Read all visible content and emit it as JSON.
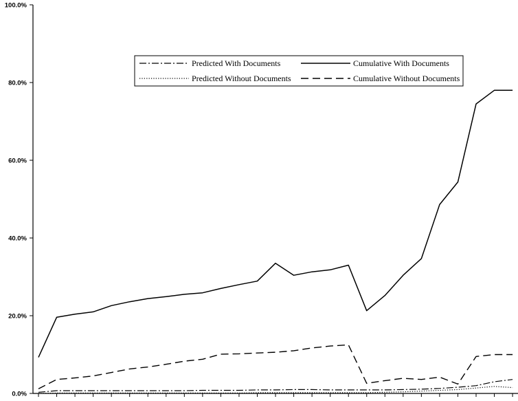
{
  "chart_data": {
    "type": "line",
    "title": "",
    "xlabel": "",
    "ylabel": "",
    "ylim": [
      0,
      100
    ],
    "y_tick_labels": [
      "0.0%",
      "20.0%",
      "40.0%",
      "60.0%",
      "80.0%",
      "100.0%"
    ],
    "y_tick_values": [
      0,
      20,
      40,
      60,
      80,
      100
    ],
    "grid": false,
    "legend_placement": "top-right",
    "x": [
      1,
      2,
      3,
      4,
      5,
      6,
      7,
      8,
      9,
      10,
      11,
      12,
      13,
      14,
      15,
      16,
      17,
      18,
      19,
      20,
      21,
      22,
      23,
      24,
      25,
      26,
      27
    ],
    "series": [
      {
        "name": "Predicted With Documents",
        "style": "dashdot",
        "values": [
          0.3,
          0.7,
          0.7,
          0.7,
          0.7,
          0.7,
          0.7,
          0.7,
          0.7,
          0.8,
          0.8,
          0.8,
          0.9,
          0.9,
          1.0,
          1.0,
          0.9,
          0.9,
          0.9,
          0.9,
          1.0,
          1.1,
          1.3,
          1.6,
          2.0,
          3.0,
          3.6
        ]
      },
      {
        "name": "Cumulative With Documents",
        "style": "solid",
        "values": [
          9.3,
          19.6,
          20.4,
          21.0,
          22.6,
          23.6,
          24.4,
          24.9,
          25.5,
          25.9,
          27.0,
          28.0,
          28.9,
          33.5,
          30.4,
          31.3,
          31.8,
          33.0,
          21.3,
          25.2,
          30.4,
          34.7,
          48.6,
          54.4,
          74.5,
          78.0,
          78.0
        ]
      },
      {
        "name": "Predicted Without Documents",
        "style": "dotted",
        "values": [
          0.0,
          0.1,
          0.1,
          0.1,
          0.1,
          0.1,
          0.1,
          0.1,
          0.1,
          0.1,
          0.1,
          0.1,
          0.2,
          0.2,
          0.2,
          0.2,
          0.2,
          0.2,
          0.2,
          0.3,
          0.4,
          0.6,
          0.8,
          1.0,
          1.4,
          1.8,
          1.5
        ]
      },
      {
        "name": "Cumulative Without Documents",
        "style": "dashed",
        "values": [
          1.2,
          3.6,
          4.0,
          4.5,
          5.4,
          6.3,
          6.8,
          7.5,
          8.3,
          8.8,
          10.1,
          10.2,
          10.4,
          10.6,
          11.0,
          11.7,
          12.2,
          12.5,
          2.6,
          3.3,
          3.9,
          3.6,
          4.2,
          2.4,
          9.5,
          10.0,
          10.0
        ]
      }
    ]
  }
}
